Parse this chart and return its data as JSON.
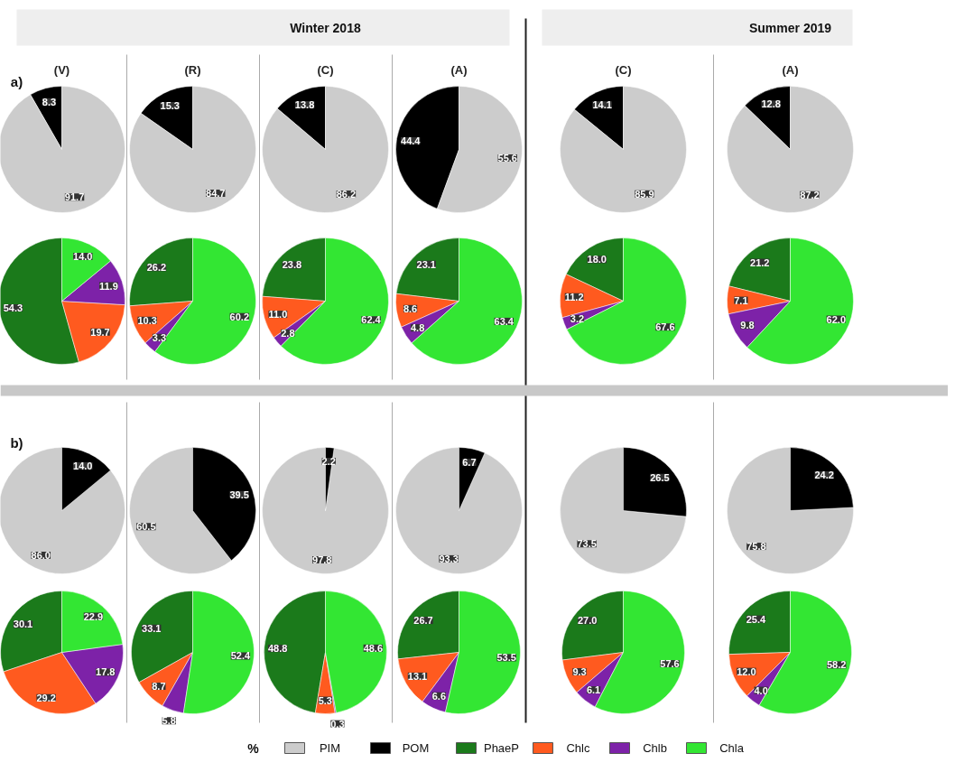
{
  "chart_data": [
    {
      "type": "pie",
      "title": "(V)",
      "annotations": [
        "a)"
      ],
      "categories": [
        null,
        null
      ],
      "values": [
        8.3,
        91.7
      ],
      "value_labels": [
        "8.3",
        "91.7"
      ],
      "colors": [
        "#000000",
        "#cccccc"
      ]
    },
    {
      "type": "pie",
      "title": "(R)",
      "categories": [
        null,
        null
      ],
      "values": [
        15.3,
        84.7
      ],
      "value_labels": [
        "15.3",
        "84.7"
      ],
      "colors": [
        "#000000",
        "#cccccc"
      ]
    },
    {
      "type": "pie",
      "title": "(C)",
      "subtitle": "Winter 2018",
      "categories": [
        null,
        null
      ],
      "values": [
        13.8,
        86.2
      ],
      "value_labels": [
        "13.8",
        "86.2"
      ],
      "colors": [
        "#000000",
        "#cccccc"
      ]
    },
    {
      "type": "pie",
      "title": "(A)",
      "categories": [
        null,
        null
      ],
      "values": [
        44.4,
        55.6
      ],
      "value_labels": [
        "44.4",
        "55.6"
      ],
      "colors": [
        "#000000",
        "#cccccc"
      ]
    },
    {
      "type": "pie",
      "title": "(C)",
      "categories": [
        null,
        null
      ],
      "values": [
        14.1,
        85.9
      ],
      "value_labels": [
        "14.1",
        "85.9"
      ],
      "colors": [
        "#000000",
        "#cccccc"
      ]
    },
    {
      "type": "pie",
      "title": "(A)",
      "subtitle": "Summer 2019",
      "categories": [
        null,
        null
      ],
      "values": [
        12.8,
        87.2
      ],
      "value_labels": [
        "12.8",
        "87.2"
      ],
      "colors": [
        "#000000",
        "#cccccc"
      ]
    },
    {
      "type": "pie",
      "categories": [
        null,
        null,
        null,
        null
      ],
      "values": [
        54.3,
        19.7,
        11.9,
        14.0
      ],
      "value_labels": [
        "54.3",
        "19.7",
        "11.9",
        "14.0"
      ],
      "colors": [
        "#1b7a1b",
        "#ff5a1f",
        "#7d22a8",
        "#33e633"
      ]
    },
    {
      "type": "pie",
      "categories": [
        null,
        null,
        null,
        null
      ],
      "values": [
        26.2,
        10.3,
        3.3,
        60.2
      ],
      "value_labels": [
        "26.2",
        "10.3",
        "3.3",
        "60.2"
      ],
      "colors": [
        "#1b7a1b",
        "#ff5a1f",
        "#7d22a8",
        "#33e633"
      ]
    },
    {
      "type": "pie",
      "categories": [
        null,
        null,
        null,
        null
      ],
      "values": [
        23.8,
        11.0,
        2.8,
        62.4
      ],
      "value_labels": [
        "23.8",
        "11.0",
        "2.8",
        "62.4"
      ],
      "colors": [
        "#1b7a1b",
        "#ff5a1f",
        "#7d22a8",
        "#33e633"
      ]
    },
    {
      "type": "pie",
      "categories": [
        null,
        null,
        null,
        null
      ],
      "values": [
        23.1,
        8.6,
        4.8,
        63.4
      ],
      "value_labels": [
        "23.1",
        "8.6",
        "4.8",
        "63.4"
      ],
      "colors": [
        "#1b7a1b",
        "#ff5a1f",
        "#7d22a8",
        "#33e633"
      ]
    },
    {
      "type": "pie",
      "categories": [
        null,
        null,
        null,
        null
      ],
      "values": [
        18.0,
        11.2,
        3.2,
        67.6
      ],
      "value_labels": [
        "18.0",
        "11.2",
        "3.2",
        "67.6"
      ],
      "colors": [
        "#1b7a1b",
        "#ff5a1f",
        "#7d22a8",
        "#33e633"
      ]
    },
    {
      "type": "pie",
      "categories": [
        null,
        null,
        null,
        null
      ],
      "values": [
        21.2,
        7.1,
        9.8,
        62.0
      ],
      "value_labels": [
        "21.2",
        "7.1",
        "9.8",
        "62.0"
      ],
      "colors": [
        "#1b7a1b",
        "#ff5a1f",
        "#7d22a8",
        "#33e633"
      ]
    },
    {
      "type": "pie",
      "annotations": [
        "b)"
      ],
      "legend": "bottom",
      "legend_title": "%",
      "categories": [
        "PIM",
        "POM"
      ],
      "values": [
        86.0,
        14.0
      ],
      "value_labels": [
        "86.0",
        "14.0"
      ],
      "colors": [
        "#cccccc",
        "#000000"
      ]
    },
    {
      "type": "pie",
      "categories": [
        null,
        null
      ],
      "values": [
        60.5,
        39.5
      ],
      "value_labels": [
        "60.5",
        "39.5"
      ],
      "colors": [
        "#cccccc",
        "#000000"
      ]
    },
    {
      "type": "pie",
      "categories": [
        null,
        null
      ],
      "values": [
        97.8,
        2.2
      ],
      "value_labels": [
        "97.8",
        "2.2"
      ],
      "colors": [
        "#cccccc",
        "#000000"
      ]
    },
    {
      "type": "pie",
      "categories": [
        null,
        null
      ],
      "values": [
        93.3,
        6.7
      ],
      "value_labels": [
        "93.3",
        "6.7"
      ],
      "colors": [
        "#cccccc",
        "#000000"
      ]
    },
    {
      "type": "pie",
      "categories": [
        null,
        null
      ],
      "values": [
        73.5,
        26.5
      ],
      "value_labels": [
        "73.5",
        "26.5"
      ],
      "colors": [
        "#cccccc",
        "#000000"
      ]
    },
    {
      "type": "pie",
      "categories": [
        null,
        null
      ],
      "values": [
        75.8,
        24.2
      ],
      "value_labels": [
        "75.8",
        "24.2"
      ],
      "colors": [
        "#cccccc",
        "#000000"
      ]
    },
    {
      "type": "pie",
      "legend": "bottom",
      "categories": [
        "PhaeP",
        "Chlc",
        "Chlb",
        "Chla"
      ],
      "values": [
        30.1,
        29.2,
        17.8,
        22.9
      ],
      "value_labels": [
        "30.1",
        "29.2",
        "17.8",
        "22.9"
      ],
      "colors": [
        "#1b7a1b",
        "#ff5a1f",
        "#7d22a8",
        "#33e633"
      ]
    },
    {
      "type": "pie",
      "categories": [
        null,
        null,
        null,
        null
      ],
      "values": [
        33.1,
        8.7,
        5.8,
        52.4
      ],
      "value_labels": [
        "33.1",
        "8.7",
        "5.8",
        "52.4"
      ],
      "colors": [
        "#1b7a1b",
        "#ff5a1f",
        "#7d22a8",
        "#33e633"
      ]
    },
    {
      "type": "pie",
      "categories": [
        null,
        null,
        null,
        null
      ],
      "values": [
        48.8,
        5.3,
        0.3,
        48.6
      ],
      "value_labels": [
        "48.8",
        "5.3",
        "0.3",
        "48.6"
      ],
      "colors": [
        "#1b7a1b",
        "#ff5a1f",
        "#7d22a8",
        "#33e633"
      ]
    },
    {
      "type": "pie",
      "categories": [
        null,
        null,
        null,
        null
      ],
      "values": [
        26.7,
        13.1,
        6.6,
        53.5
      ],
      "value_labels": [
        "26.7",
        "13.1",
        "6.6",
        "53.5"
      ],
      "colors": [
        "#1b7a1b",
        "#ff5a1f",
        "#7d22a8",
        "#33e633"
      ]
    },
    {
      "type": "pie",
      "categories": [
        null,
        null,
        null,
        null
      ],
      "values": [
        27.0,
        9.3,
        6.1,
        57.6
      ],
      "value_labels": [
        "27.0",
        "9.3",
        "6.1",
        "57.6"
      ],
      "colors": [
        "#1b7a1b",
        "#ff5a1f",
        "#7d22a8",
        "#33e633"
      ]
    },
    {
      "type": "pie",
      "categories": [
        null,
        null,
        null,
        null
      ],
      "values": [
        25.4,
        12.0,
        4.0,
        58.2
      ],
      "value_labels": [
        "25.4",
        "12.0",
        "4.0",
        "58.2"
      ],
      "colors": [
        "#1b7a1b",
        "#ff5a1f",
        "#7d22a8",
        "#33e633"
      ]
    }
  ]
}
